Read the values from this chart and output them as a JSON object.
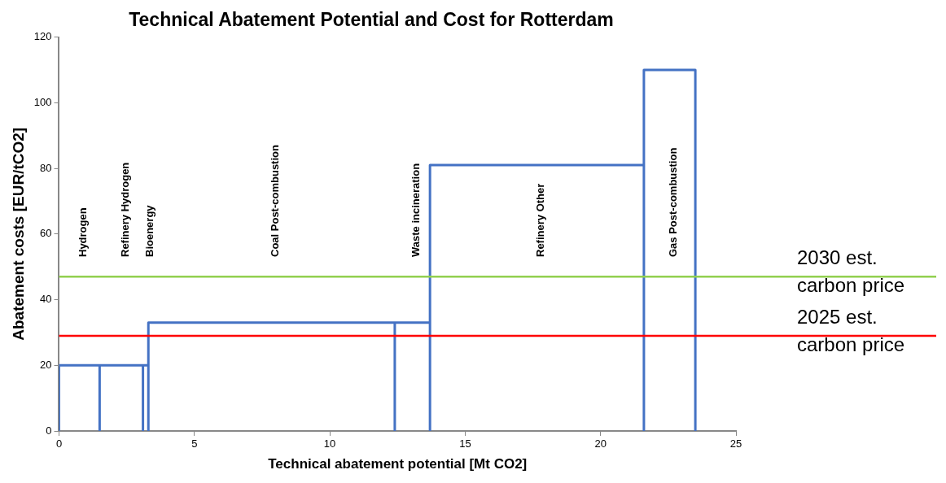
{
  "chart_data": {
    "type": "line",
    "title": "Technical Abatement Potential and Cost for Rotterdam",
    "xlabel": "Technical abatement potential [Mt CO2]",
    "ylabel": "Abatement costs [EUR/tCO2]",
    "series": [
      {
        "color": "#4472c4",
        "x": [
          0,
          0,
          1.5,
          1.5,
          1.5,
          3.1,
          3.1,
          3.1,
          3.3,
          3.3,
          3.3,
          12.4,
          12.4,
          12.4,
          13.7,
          13.7,
          13.7,
          21.6,
          21.6,
          21.6,
          23.5,
          23.5
        ],
        "values": [
          0,
          20,
          20,
          0,
          20,
          20,
          0,
          20,
          20,
          0,
          33,
          33,
          0,
          33,
          33,
          0,
          81,
          81,
          0,
          110,
          110,
          0
        ]
      }
    ],
    "annotations": [
      "Hydrogen",
      "Refinery Hydrogen",
      "Bioenergy",
      "Coal Post-combustion",
      "Waste incineration",
      "Refinery Other",
      "Gas Post-combustion"
    ],
    "ref_lines": [
      {
        "axis": "y",
        "value": 47,
        "label": "2030 est. carbon price",
        "color": "#92d050"
      },
      {
        "axis": "y",
        "value": 29,
        "label": "2025 est. carbon price",
        "color": "#ff0000"
      }
    ],
    "xlim": [
      0,
      25
    ],
    "xticks": [
      0,
      5,
      10,
      15,
      20,
      25
    ],
    "ylim": [
      0,
      120
    ],
    "yticks": [
      0,
      20,
      40,
      60,
      80,
      100,
      120
    ],
    "grid": false,
    "legend": false
  }
}
